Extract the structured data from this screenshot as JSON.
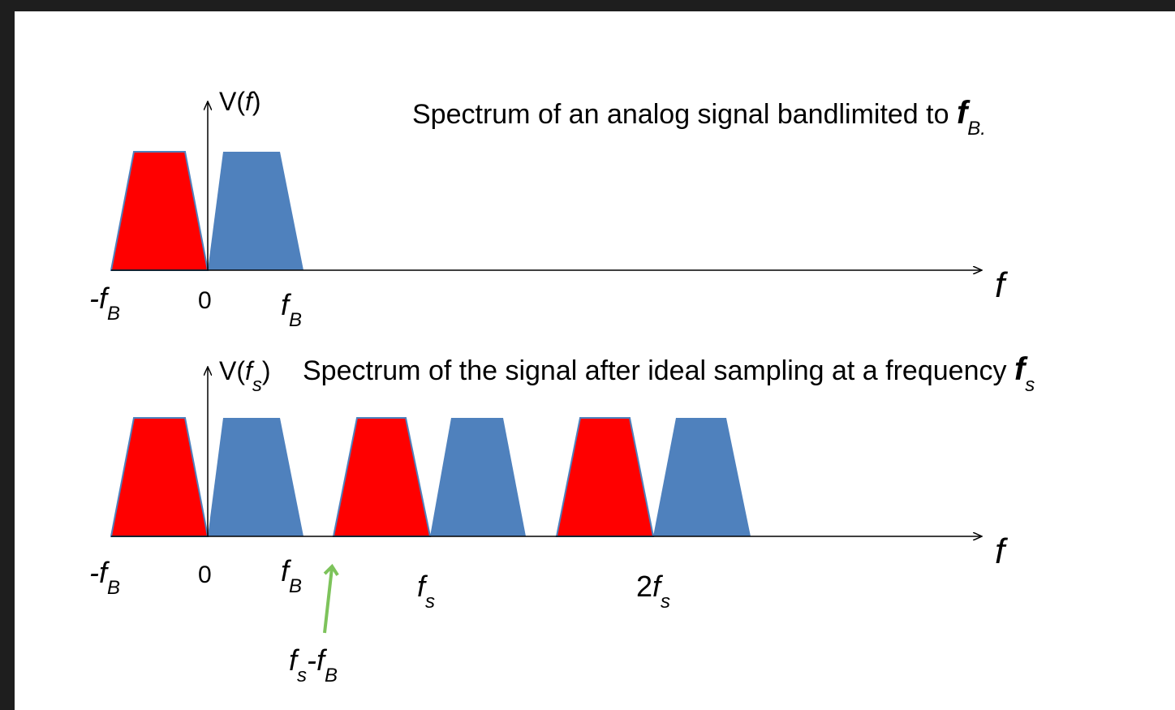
{
  "top": {
    "axis_label": [
      "V(",
      "f",
      ")"
    ],
    "caption": [
      "Spectrum of an analog signal bandlimited to ",
      "f",
      "B."
    ],
    "ticks": [
      [
        "-f",
        "B"
      ],
      [
        "0"
      ],
      [
        "f",
        "B"
      ]
    ],
    "axis_end": "f"
  },
  "bottom": {
    "axis_label": [
      "V(",
      "f",
      "s",
      ")"
    ],
    "caption": [
      "Spectrum of the signal after ideal sampling at a frequency ",
      "f",
      "s"
    ],
    "ticks": [
      [
        "-f",
        "B"
      ],
      [
        "0"
      ],
      [
        "f",
        "B"
      ],
      [
        "f",
        "s"
      ],
      [
        "2",
        "f",
        "s"
      ]
    ],
    "annotation": [
      "f",
      "s",
      "-f",
      "B"
    ],
    "axis_end": "f"
  }
}
